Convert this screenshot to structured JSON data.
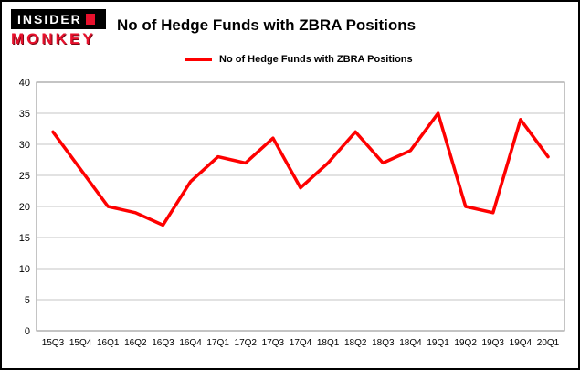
{
  "logo": {
    "line1": "INSIDER",
    "line2": "MONKEY",
    "brand_red": "#e8112d"
  },
  "header": {
    "title": "No of Hedge Funds with ZBRA Positions"
  },
  "legend": {
    "label": "No of Hedge Funds with ZBRA Positions",
    "color": "#fe0000"
  },
  "chart_data": {
    "type": "line",
    "title": "No of Hedge Funds with ZBRA Positions",
    "categories": [
      "15Q3",
      "15Q4",
      "16Q1",
      "16Q2",
      "16Q3",
      "16Q4",
      "17Q1",
      "17Q2",
      "17Q3",
      "17Q4",
      "18Q1",
      "18Q2",
      "18Q3",
      "18Q4",
      "19Q1",
      "19Q2",
      "19Q3",
      "19Q4",
      "20Q1"
    ],
    "series": [
      {
        "name": "No of Hedge Funds with ZBRA Positions",
        "color": "#fe0000",
        "values": [
          32,
          26,
          20,
          19,
          17,
          24,
          28,
          27,
          31,
          23,
          27,
          32,
          27,
          29,
          35,
          20,
          19,
          34,
          28
        ]
      }
    ],
    "xlabel": "",
    "ylabel": "",
    "ylim": [
      0,
      40
    ],
    "ytick_step": 5,
    "grid": true,
    "grid_color": "#c6c6c6",
    "axis_color": "#888888",
    "legend_position": "top-left"
  }
}
